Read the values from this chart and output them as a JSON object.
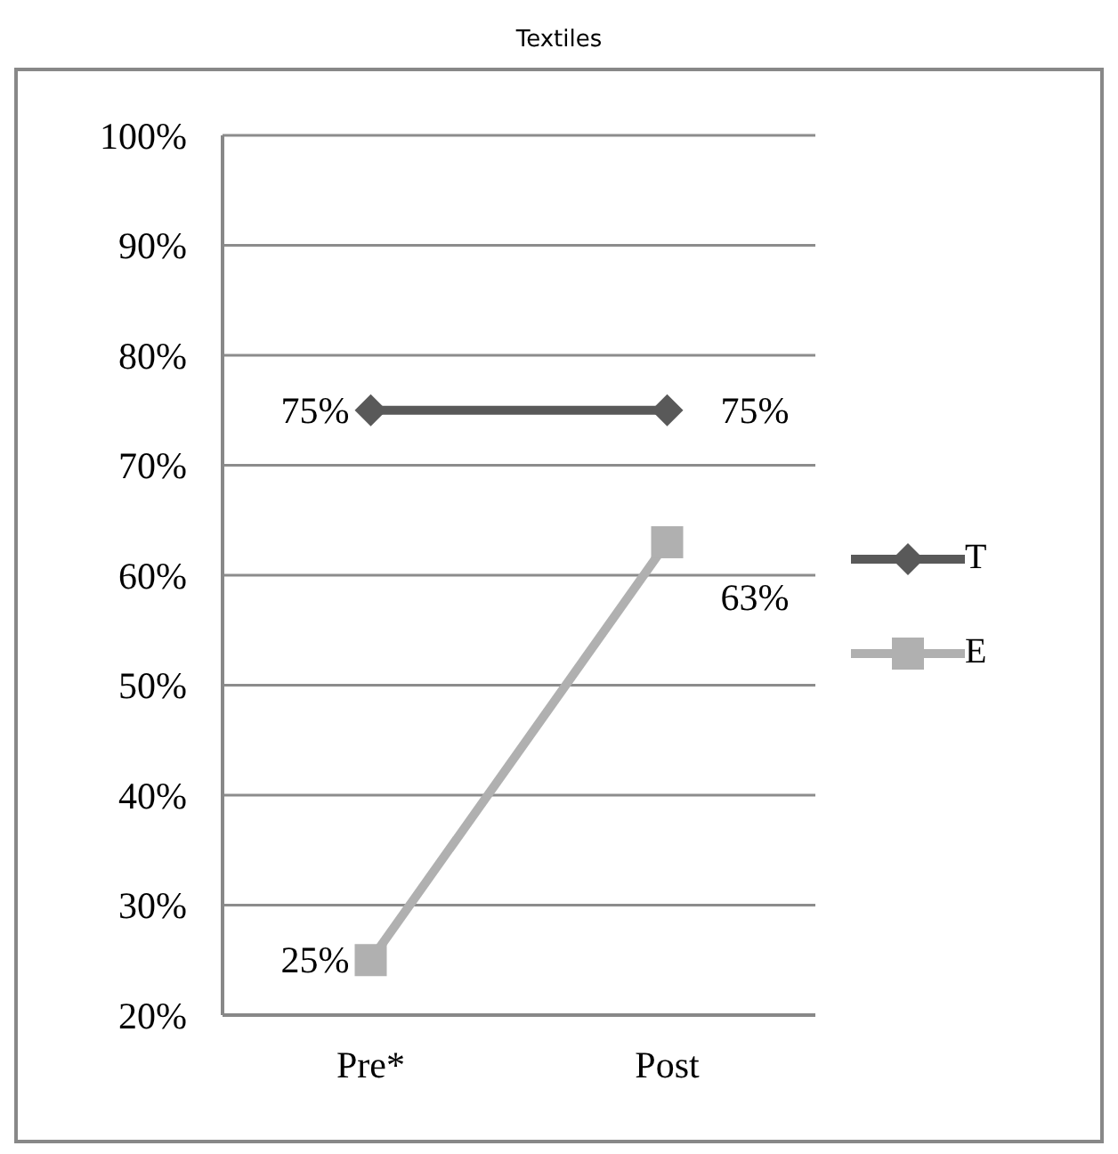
{
  "chart_data": {
    "type": "line",
    "title": "Textiles",
    "categories": [
      "Pre*",
      "Post"
    ],
    "series": [
      {
        "name": "T",
        "color": "#595959",
        "marker": "diamond",
        "values": [
          75,
          75
        ],
        "value_labels": [
          "75%",
          "75%"
        ]
      },
      {
        "name": "E",
        "color": "#b0b0b0",
        "marker": "square",
        "values": [
          25,
          63
        ],
        "value_labels": [
          "25%",
          "63%"
        ]
      }
    ],
    "ylim": [
      20,
      100
    ],
    "yticks": [
      {
        "value": 20,
        "label": "20%"
      },
      {
        "value": 30,
        "label": "30%"
      },
      {
        "value": 40,
        "label": "40%"
      },
      {
        "value": 50,
        "label": "50%"
      },
      {
        "value": 60,
        "label": "60%"
      },
      {
        "value": 70,
        "label": "70%"
      },
      {
        "value": 80,
        "label": "80%"
      },
      {
        "value": 90,
        "label": "90%"
      },
      {
        "value": 100,
        "label": "100%"
      }
    ],
    "grid": "y",
    "legend": "right"
  }
}
